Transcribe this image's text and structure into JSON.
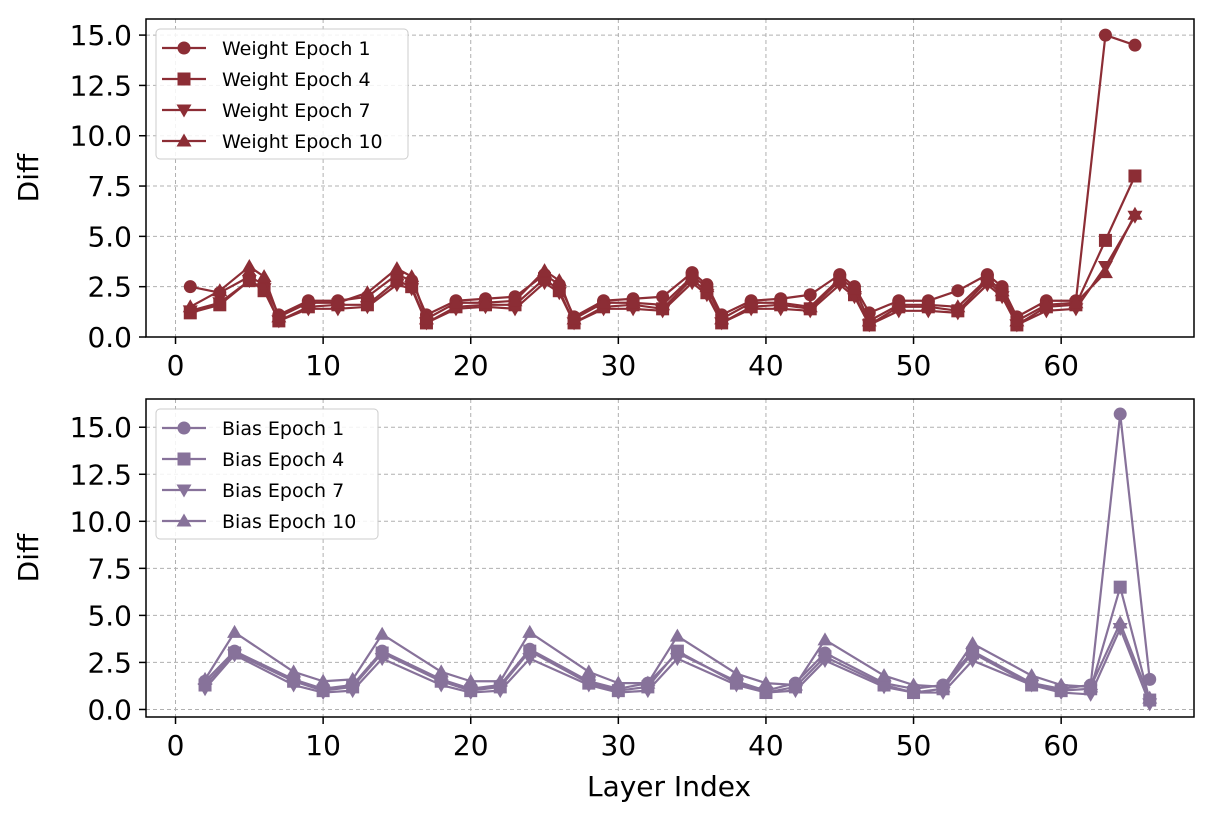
{
  "chart_data": [
    {
      "type": "line",
      "xlabel": "",
      "ylabel": "Diff",
      "xlim": [
        -2,
        69
      ],
      "ylim": [
        0,
        15.8
      ],
      "xticks": [
        0,
        10,
        20,
        30,
        40,
        50,
        60
      ],
      "yticks": [
        0.0,
        2.5,
        5.0,
        7.5,
        10.0,
        12.5,
        15.0
      ],
      "ytick_labels": [
        "0.0",
        "2.5",
        "5.0",
        "7.5",
        "10.0",
        "12.5",
        "15.0"
      ],
      "grid": true,
      "legend_position": "top-left",
      "color": "#8c2d35",
      "x": [
        1,
        3,
        5,
        6,
        7,
        9,
        11,
        13,
        15,
        16,
        17,
        19,
        21,
        23,
        25,
        26,
        27,
        29,
        31,
        33,
        35,
        36,
        37,
        39,
        41,
        43,
        45,
        46,
        47,
        49,
        51,
        53,
        55,
        56,
        57,
        59,
        61,
        63,
        65
      ],
      "series": [
        {
          "name": "Weight Epoch 1",
          "marker": "circle",
          "values": [
            2.5,
            2.2,
            3.0,
            2.6,
            1.1,
            1.8,
            1.8,
            2.0,
            3.1,
            2.8,
            1.1,
            1.8,
            1.9,
            2.0,
            3.1,
            2.6,
            1.0,
            1.8,
            1.9,
            2.0,
            3.2,
            2.6,
            1.1,
            1.8,
            1.9,
            2.1,
            3.1,
            2.5,
            1.2,
            1.8,
            1.8,
            2.3,
            3.1,
            2.5,
            1.0,
            1.8,
            1.8,
            15.0,
            14.5
          ]
        },
        {
          "name": "Weight Epoch 4",
          "marker": "square",
          "values": [
            1.2,
            1.6,
            2.8,
            2.3,
            0.8,
            1.5,
            1.6,
            1.6,
            2.8,
            2.5,
            0.7,
            1.5,
            1.6,
            1.6,
            2.9,
            2.3,
            0.7,
            1.5,
            1.6,
            1.4,
            2.9,
            2.2,
            0.7,
            1.5,
            1.6,
            1.4,
            2.8,
            2.1,
            0.6,
            1.5,
            1.5,
            1.3,
            2.8,
            2.1,
            0.6,
            1.5,
            1.6,
            4.8,
            8.0
          ]
        },
        {
          "name": "Weight Epoch 7",
          "marker": "triangle-down",
          "values": [
            1.3,
            1.7,
            2.8,
            2.4,
            0.8,
            1.4,
            1.4,
            1.5,
            2.6,
            2.4,
            0.7,
            1.4,
            1.5,
            1.4,
            2.7,
            2.2,
            0.7,
            1.4,
            1.4,
            1.3,
            2.7,
            2.1,
            0.7,
            1.4,
            1.4,
            1.3,
            2.6,
            2.0,
            0.6,
            1.3,
            1.3,
            1.2,
            2.6,
            2.0,
            0.6,
            1.3,
            1.4,
            3.5,
            6.0
          ]
        },
        {
          "name": "Weight Epoch 10",
          "marker": "triangle-up",
          "values": [
            1.5,
            2.3,
            3.5,
            3.0,
            1.0,
            1.7,
            1.7,
            2.2,
            3.4,
            3.0,
            0.9,
            1.7,
            1.7,
            1.8,
            3.3,
            2.8,
            0.9,
            1.7,
            1.7,
            1.6,
            3.0,
            2.5,
            0.9,
            1.7,
            1.7,
            1.5,
            2.9,
            2.4,
            0.8,
            1.6,
            1.6,
            1.5,
            2.9,
            2.3,
            0.8,
            1.6,
            1.7,
            3.2,
            6.1
          ]
        }
      ]
    },
    {
      "type": "line",
      "xlabel": "Layer Index",
      "ylabel": "Diff",
      "xlim": [
        -2,
        69
      ],
      "ylim": [
        -0.4,
        16.5
      ],
      "xticks": [
        0,
        10,
        20,
        30,
        40,
        50,
        60
      ],
      "yticks": [
        0.0,
        2.5,
        5.0,
        7.5,
        10.0,
        12.5,
        15.0
      ],
      "ytick_labels": [
        "0.0",
        "2.5",
        "5.0",
        "7.5",
        "10.0",
        "12.5",
        "15.0"
      ],
      "grid": true,
      "legend_position": "top-left",
      "color": "#87729a",
      "x": [
        2,
        4,
        8,
        10,
        12,
        14,
        18,
        20,
        22,
        24,
        28,
        30,
        32,
        34,
        38,
        40,
        42,
        44,
        48,
        50,
        52,
        54,
        58,
        60,
        62,
        64,
        66
      ],
      "series": [
        {
          "name": "Bias Epoch 1",
          "marker": "circle",
          "values": [
            1.5,
            3.1,
            1.6,
            1.1,
            1.3,
            3.1,
            1.6,
            1.1,
            1.3,
            3.2,
            1.5,
            1.1,
            1.4,
            3.0,
            1.5,
            1.0,
            1.4,
            3.0,
            1.4,
            1.1,
            1.3,
            3.1,
            1.4,
            1.1,
            1.3,
            15.7,
            1.6
          ]
        },
        {
          "name": "Bias Epoch 4",
          "marker": "square",
          "values": [
            1.3,
            3.0,
            1.5,
            1.0,
            1.2,
            3.0,
            1.5,
            1.0,
            1.2,
            3.1,
            1.4,
            1.0,
            1.2,
            3.1,
            1.4,
            0.9,
            1.2,
            2.8,
            1.3,
            0.9,
            1.1,
            3.0,
            1.3,
            1.0,
            1.1,
            6.5,
            0.5
          ]
        },
        {
          "name": "Bias Epoch 7",
          "marker": "triangle-down",
          "values": [
            1.1,
            2.9,
            1.3,
            0.9,
            1.0,
            2.7,
            1.3,
            0.9,
            1.0,
            2.7,
            1.3,
            0.9,
            1.0,
            2.7,
            1.3,
            0.9,
            1.0,
            2.6,
            1.2,
            0.9,
            0.9,
            2.6,
            1.3,
            0.9,
            0.8,
            4.3,
            0.3
          ]
        },
        {
          "name": "Bias Epoch 10",
          "marker": "triangle-up",
          "values": [
            1.6,
            4.1,
            2.0,
            1.5,
            1.6,
            4.0,
            2.0,
            1.5,
            1.5,
            4.1,
            2.0,
            1.4,
            1.4,
            3.9,
            1.9,
            1.4,
            1.3,
            3.7,
            1.8,
            1.3,
            1.2,
            3.5,
            1.8,
            1.3,
            1.2,
            4.6,
            0.6
          ]
        }
      ]
    }
  ]
}
